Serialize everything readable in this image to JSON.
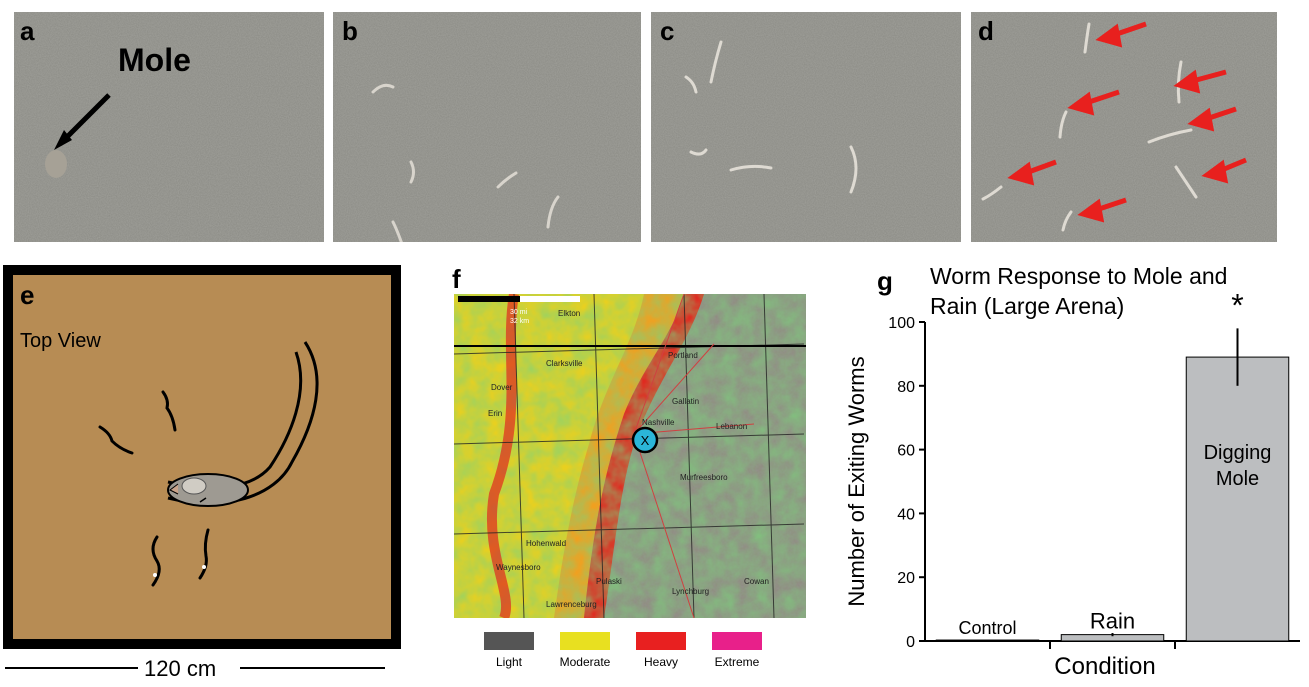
{
  "panels": {
    "a": {
      "label": "a",
      "annotation": "Mole"
    },
    "b": {
      "label": "b"
    },
    "c": {
      "label": "c"
    },
    "d": {
      "label": "d"
    },
    "e": {
      "label": "e",
      "view_label": "Top View",
      "scale_label": "120 cm"
    },
    "f": {
      "label": "f",
      "marker": "X",
      "scale_text_1": "30 mi",
      "scale_text_2": "32 km",
      "places": [
        "Elkton",
        "Clarksville",
        "Dover",
        "Erin",
        "Portland",
        "Gallatin",
        "Nashville",
        "Lebanon",
        "Murfreesboro",
        "Hohenwald",
        "Waynesboro",
        "Pulaski",
        "Lawrenceburg",
        "Cowan",
        "Lynchburg"
      ],
      "legend": [
        {
          "label": "Light",
          "color": "#555555"
        },
        {
          "label": "Moderate",
          "color": "#e8e020"
        },
        {
          "label": "Heavy",
          "color": "#e82020"
        },
        {
          "label": "Extreme",
          "color": "#e8208a"
        }
      ]
    },
    "g": {
      "label": "g"
    }
  },
  "chart_data": {
    "type": "bar",
    "title": "Worm Response to Mole and Rain (Large Arena)",
    "title_line1": "Worm Response to Mole and",
    "title_line2": "Rain (Large Arena)",
    "xlabel": "Condition",
    "ylabel": "Number of Exiting Worms",
    "ylim": [
      0,
      100
    ],
    "yticks": [
      0,
      20,
      40,
      60,
      80,
      100
    ],
    "categories": [
      "Control",
      "Rain",
      "Digging Mole"
    ],
    "category_line1": [
      "Control",
      "Rain",
      "Digging"
    ],
    "category_line2": [
      "",
      "",
      "Mole"
    ],
    "values": [
      0.3,
      2,
      89
    ],
    "error": [
      0,
      0.5,
      9
    ],
    "significance_marker": "*",
    "bar_color": "#bcbec0"
  }
}
